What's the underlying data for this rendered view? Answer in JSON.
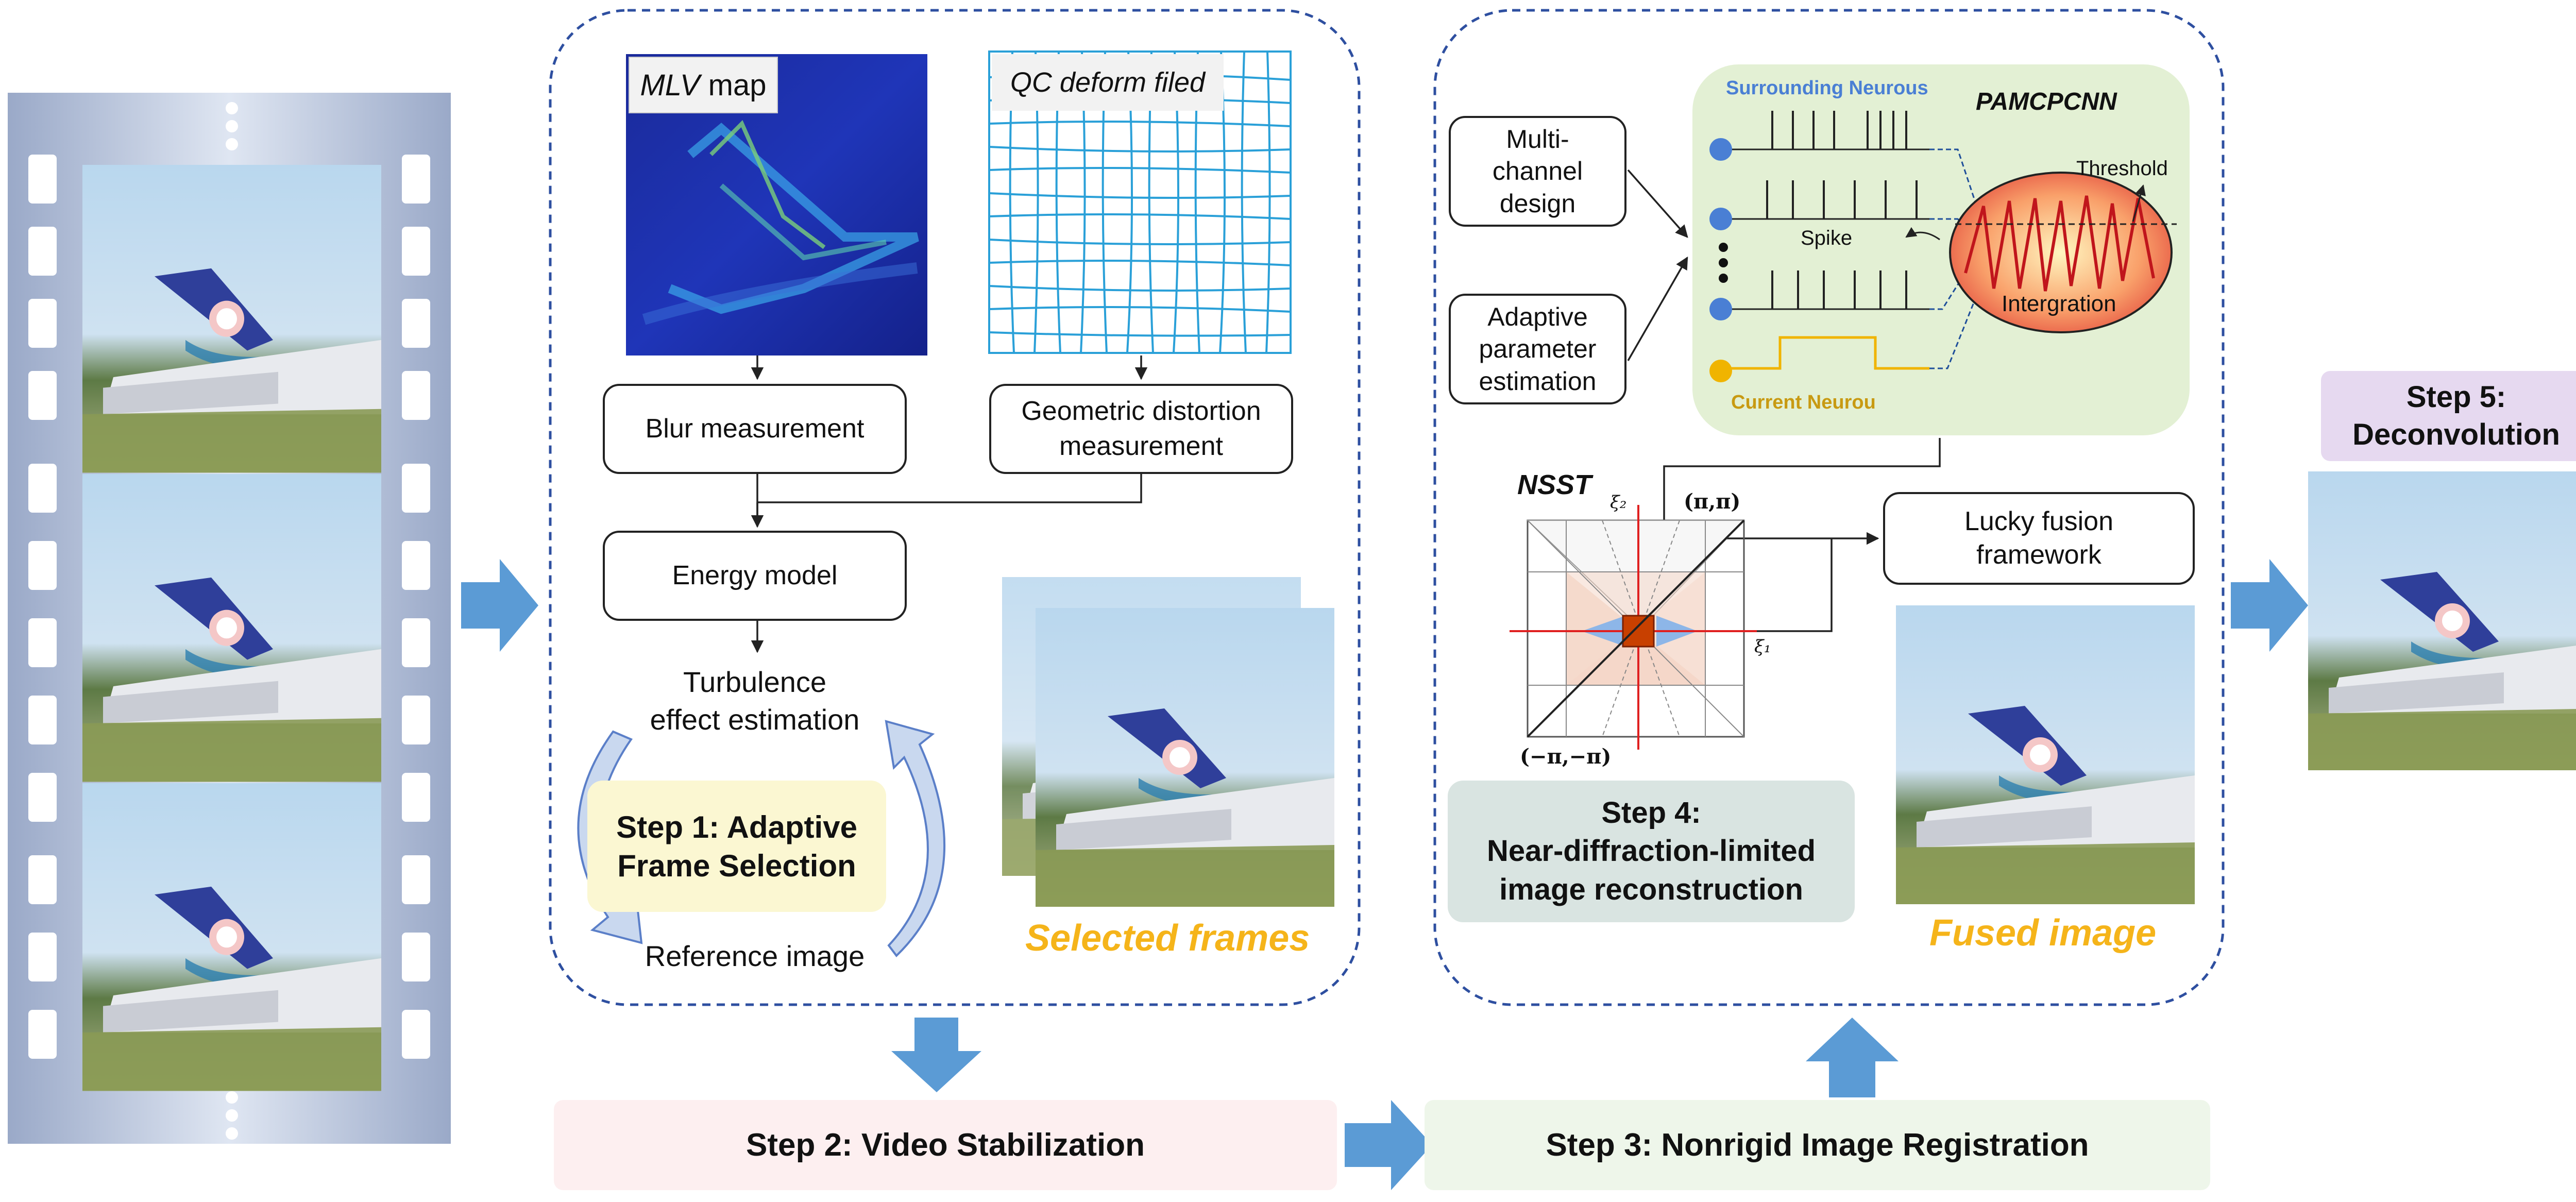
{
  "step1": {
    "mlv_label_italic": "MLV",
    "mlv_label_rest": " map",
    "qc_label": "QC deform filed",
    "blur": "Blur measurement",
    "geo_line1": "Geometric distortion",
    "geo_line2": "measurement",
    "energy": "Energy model",
    "turb_line1": "Turbulence",
    "turb_line2": "effect estimation",
    "ref": "Reference image",
    "title_line1": "Step 1: Adaptive",
    "title_line2": "Frame Selection",
    "selected": "Selected frames"
  },
  "step2": {
    "title": "Step 2: Video Stabilization"
  },
  "step3": {
    "title": "Step 3: Nonrigid Image Registration"
  },
  "step4": {
    "multichannel_l1": "Multi-",
    "multichannel_l2": "channel",
    "multichannel_l3": "design",
    "adaptive_l1": "Adaptive",
    "adaptive_l2": "parameter",
    "adaptive_l3": "estimation",
    "surrounding": "Surrounding Neurous",
    "pamcpcnn": "PAMCPCNN",
    "threshold": "Threshold",
    "spike": "Spike",
    "integration": "Intergration",
    "current": "Current Neurou",
    "nsst": "NSST",
    "pi_pos": "(π,π)",
    "pi_neg": "(−π,−π)",
    "xi1": "ξ₁",
    "xi2": "ξ₂",
    "lucky_l1": "Lucky fusion",
    "lucky_l2": "framework",
    "title_line1": "Step 4:",
    "title_line2": "Near-diffraction-limited",
    "title_line3": "image reconstruction",
    "fused": "Fused image"
  },
  "step5": {
    "title_line1": "Step 5:",
    "title_line2": "Deconvolution"
  },
  "colors": {
    "dashed_border": "#2e4fa0",
    "arrow_blue": "#5b9bd5",
    "caption_yellow": "#f5b41a",
    "step1_bg": "#fbf7d2",
    "step2_bg": "#fdeff0",
    "step3_bg": "#eef6ea",
    "step4_bg": "#d9e4e1",
    "step5_bg": "#e6d9f0",
    "pcnn_bg": "#e3f0d4",
    "surround_blue": "#4a7fd4",
    "current_gold": "#c89a12"
  },
  "icons": [
    "film-strip-icon",
    "neuron-dot-icon",
    "frequency-tiling-icon",
    "airplane-image-icon"
  ]
}
